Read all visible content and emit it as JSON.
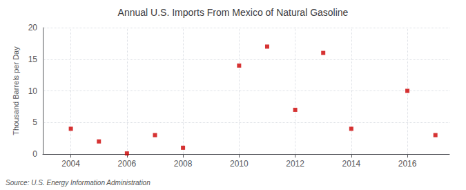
{
  "chart_data": {
    "type": "scatter",
    "title": "Annual U.S. Imports From Mexico of Natural Gasoline",
    "ylabel": "Thousand Barrels per Day",
    "annotation": "Source: U.S. Energy Information Administration",
    "x": [
      2004,
      2005,
      2006,
      2007,
      2008,
      2010,
      2011,
      2012,
      2013,
      2014,
      2016,
      2017
    ],
    "values": [
      4,
      2,
      0.1,
      3,
      1,
      14,
      17,
      7,
      16,
      4,
      10,
      3
    ],
    "color": "#cc0000",
    "marker": "square",
    "xlim": [
      2003.0,
      2017.5
    ],
    "ylim": [
      0,
      20
    ],
    "xticks": [
      2004,
      2006,
      2008,
      2010,
      2012,
      2014,
      2016
    ],
    "yticks": [
      0,
      5,
      10,
      15,
      20
    ],
    "grid": true
  }
}
